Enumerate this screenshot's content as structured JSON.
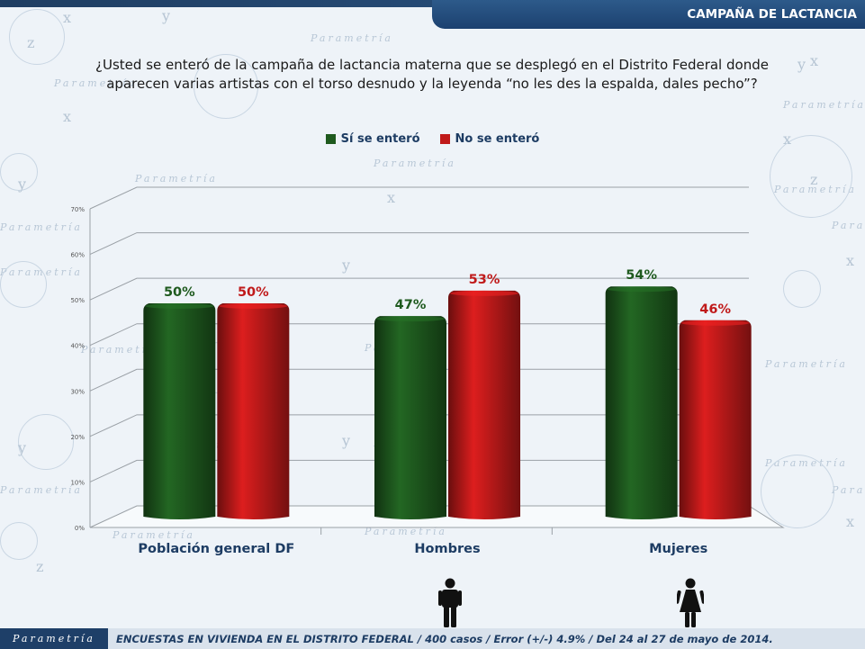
{
  "header": {
    "title": "CAMPAÑA DE LACTANCIA"
  },
  "question": {
    "line1": "¿Usted se enteró de la campaña de lactancia materna que se desplegó en el Distrito Federal donde",
    "line2": "aparecen varias artistas con el torso desnudo y la leyenda “no les des la espalda, dales pecho”?"
  },
  "watermark": {
    "brand": "Parametría"
  },
  "icons": {
    "men": "male-person-icon",
    "women": "female-person-icon"
  },
  "footer": {
    "logo": "Parametría",
    "note": "ENCUESTAS EN VIVIENDA EN EL DISTRITO FEDERAL / 400 casos / Error (+/-) 4.9% / Del 24 al 27 de mayo de 2014."
  },
  "chart_data": {
    "type": "bar",
    "categories": [
      "Población general DF",
      "Hombres",
      "Mujeres"
    ],
    "series": [
      {
        "name": "Sí se enteró",
        "color": "#1e5a1e",
        "label_color": "#1e5a1e",
        "values": [
          50,
          47,
          54
        ],
        "labels": [
          "50%",
          "47%",
          "54%"
        ]
      },
      {
        "name": "No se enteró",
        "color": "#c01a1a",
        "label_color": "#c01a1a",
        "values": [
          50,
          53,
          46
        ],
        "labels": [
          "50%",
          "53%",
          "46%"
        ]
      }
    ],
    "ylim": [
      0,
      70
    ],
    "yticks": [
      "0%",
      "10%",
      "20%",
      "30%",
      "40%",
      "50%",
      "60%",
      "70%"
    ],
    "ytick_values": [
      0,
      10,
      20,
      30,
      40,
      50,
      60,
      70
    ],
    "grid": true,
    "legend_position": "top-center",
    "title": "",
    "xlabel": "",
    "ylabel": ""
  }
}
